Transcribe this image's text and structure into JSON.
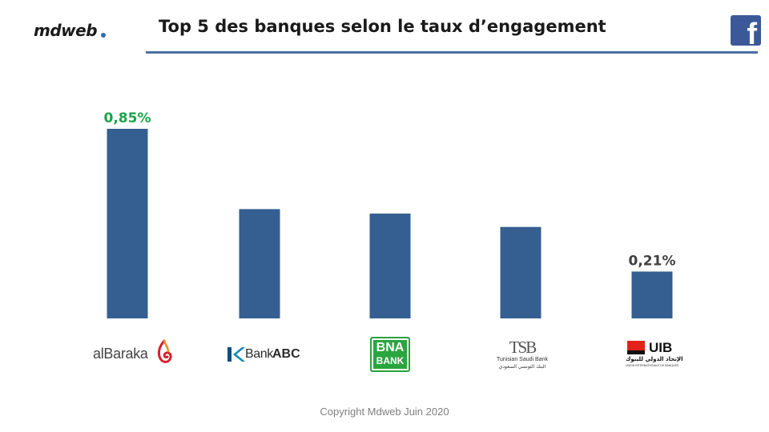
{
  "header": {
    "brand": "mdweb",
    "title": "Top 5 des banques selon le taux d’engagement",
    "social_icon": "facebook-icon"
  },
  "chart_data": {
    "type": "bar",
    "title": "Top 5 des banques selon le taux d’engagement",
    "categories": [
      "alBaraka",
      "Bank ABC",
      "BNA BANK",
      "Tunisian Saudi Bank",
      "UIB"
    ],
    "values": [
      0.85,
      0.49,
      0.47,
      0.41,
      0.21
    ],
    "unit": "%",
    "data_labels": [
      {
        "index": 0,
        "text": "0,85%",
        "color": "#1aa34a"
      },
      {
        "index": 4,
        "text": "0,21%",
        "color": "#404040"
      }
    ],
    "bar_color": "#355f91",
    "xlabel": "",
    "ylabel": "",
    "ylim": [
      0,
      0.85
    ],
    "grid": false
  },
  "logos": {
    "albaraka": "alBaraka",
    "bankabc_bank": "Bank",
    "bankabc_abc": "ABC",
    "bna_line1": "BNA",
    "bna_line2": "BANK",
    "tsb_mark": "TSB",
    "tsb_name": "Tunisian Saudi Bank",
    "tsb_arabic": "البنك التونسي السعودي",
    "uib_name": "UIB",
    "uib_arabic": "الإتحاد الدولي للبنوك",
    "uib_sub": "UNION INTERNATIONALE DE BANQUES"
  },
  "footer": {
    "copyright": "Copyright Mdweb  Juin 2020"
  }
}
